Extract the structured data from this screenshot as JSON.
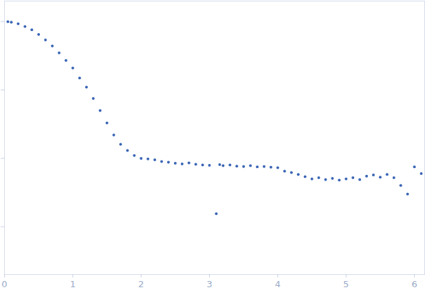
{
  "chart_data": {
    "type": "scatter",
    "x": [
      0.05,
      0.1,
      0.2,
      0.3,
      0.4,
      0.5,
      0.6,
      0.7,
      0.8,
      0.9,
      1.0,
      1.1,
      1.2,
      1.3,
      1.4,
      1.5,
      1.6,
      1.7,
      1.8,
      1.9,
      2.0,
      2.1,
      2.2,
      2.3,
      2.4,
      2.5,
      2.6,
      2.7,
      2.8,
      2.9,
      3.0,
      3.1,
      3.15,
      3.2,
      3.3,
      3.4,
      3.5,
      3.6,
      3.7,
      3.8,
      3.9,
      4.0,
      4.1,
      4.2,
      4.3,
      4.4,
      4.5,
      4.6,
      4.7,
      4.8,
      4.9,
      5.0,
      5.1,
      5.2,
      5.3,
      5.4,
      5.5,
      5.6,
      5.7,
      5.8,
      5.9,
      6.0,
      6.1
    ],
    "values": [
      1.0,
      0.98,
      0.93,
      0.85,
      0.76,
      0.65,
      0.54,
      0.44,
      0.35,
      0.27,
      0.21,
      0.15,
      0.11,
      0.075,
      0.05,
      0.033,
      0.022,
      0.016,
      0.013,
      0.011,
      0.01,
      0.0098,
      0.0095,
      0.009,
      0.0088,
      0.0085,
      0.0083,
      0.0086,
      0.0082,
      0.008,
      0.0079,
      0.00155,
      0.0081,
      0.0078,
      0.008,
      0.0077,
      0.0076,
      0.0078,
      0.0075,
      0.0076,
      0.0074,
      0.0073,
      0.0065,
      0.0062,
      0.0058,
      0.0054,
      0.005,
      0.0052,
      0.0049,
      0.0051,
      0.0048,
      0.005,
      0.0052,
      0.0049,
      0.0055,
      0.0057,
      0.0053,
      0.0058,
      0.0052,
      0.004,
      0.003,
      0.0075,
      0.006
    ],
    "color": "#3b66b5",
    "marker": "circle",
    "log": "y",
    "xlim": [
      0,
      6.15
    ],
    "xticks": [
      0,
      1,
      2,
      3,
      4,
      5,
      6
    ],
    "ylim": [
      0.0002,
      2
    ],
    "yticks": [
      0.001,
      0.01,
      0.1,
      1
    ],
    "tick_labels": "x",
    "grid": false
  }
}
